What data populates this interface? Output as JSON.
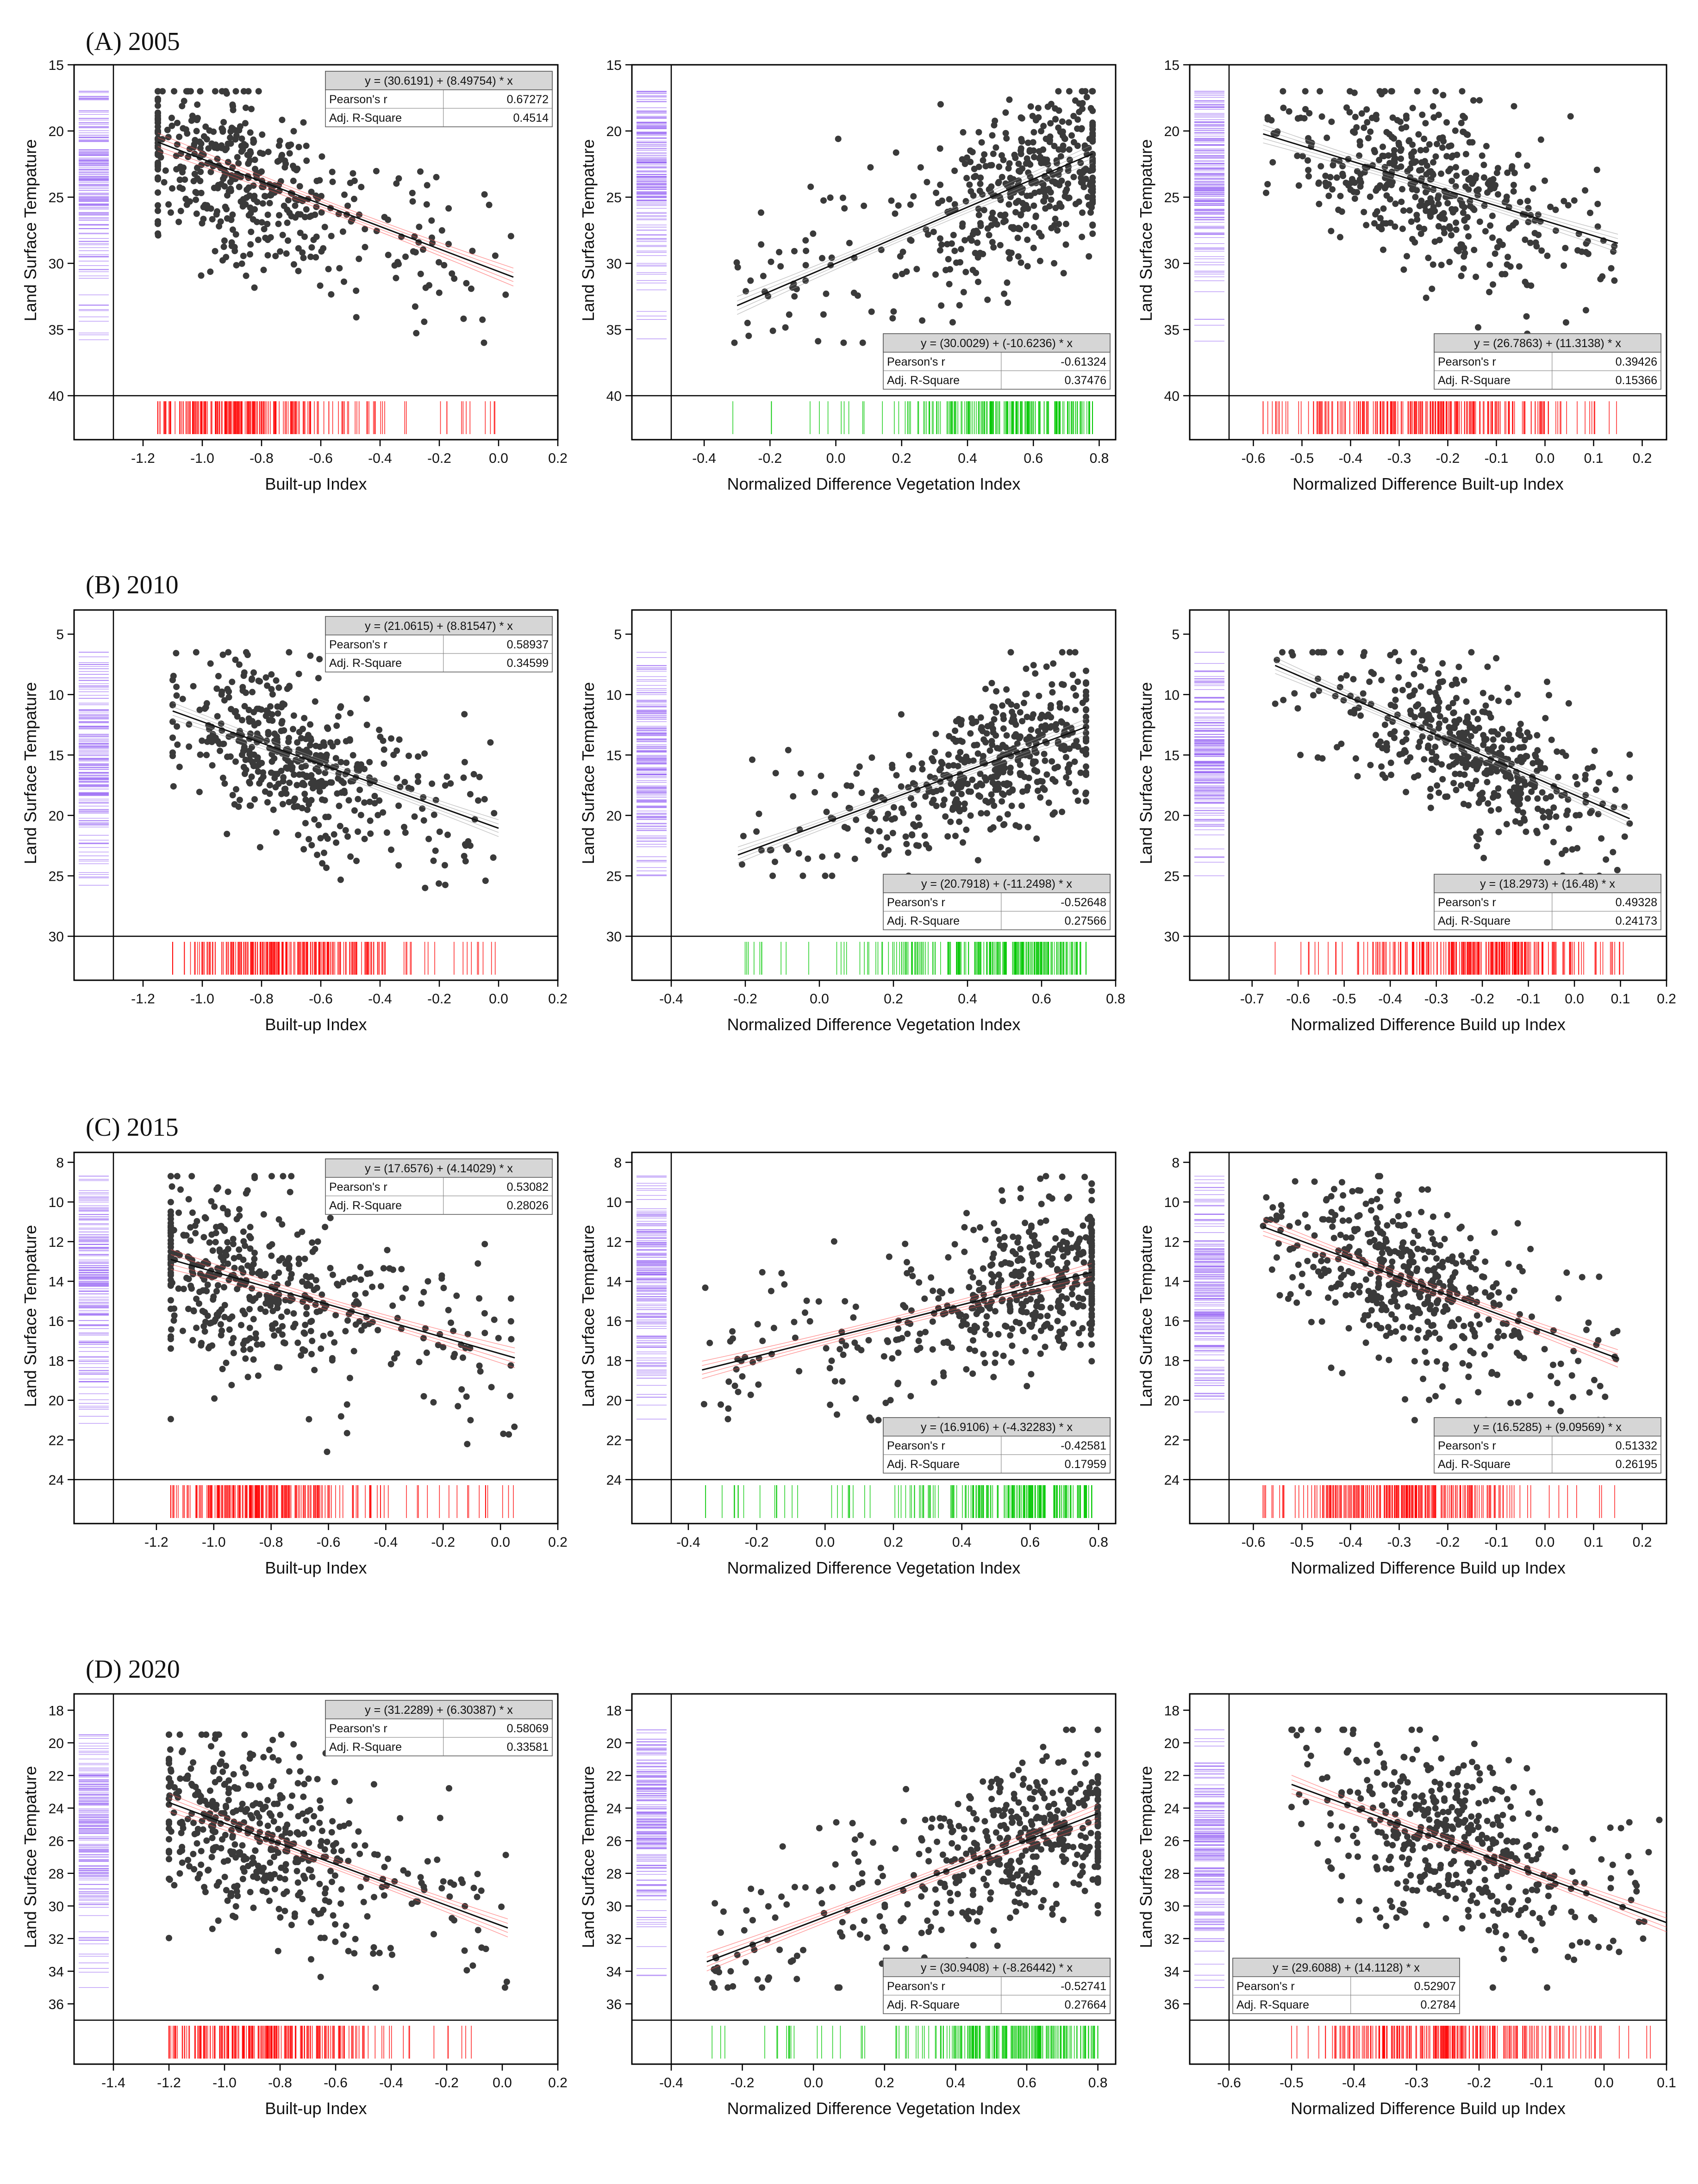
{
  "figure": {
    "panels_rows": [
      {
        "label": "(A) 2005"
      },
      {
        "label": "(B) 2010"
      },
      {
        "label": "(C) 2015"
      },
      {
        "label": "(D) 2020"
      }
    ]
  },
  "colors": {
    "points": "#3a3a3a",
    "y_rug": "#9b6cf5",
    "rug_red": "#ff0000",
    "rug_green": "#00c800",
    "ci_red": "#ff4d4d",
    "ci_gray": "#9a9a9a",
    "stat_header": "#d6d6d6"
  },
  "stats_labels": {
    "r": "Pearson's r",
    "adj": "Adj. R-Square"
  },
  "chart_data": [
    {
      "type": "scatter",
      "row": 0,
      "col": 0,
      "xlabel": "Built-up Index",
      "ylabel": "Land Surface Tempature",
      "xlim": [
        -1.3,
        0.2
      ],
      "ylim": [
        15,
        40
      ],
      "y_inverted": true,
      "xticks": [
        -1.2,
        -1.0,
        -0.8,
        -0.6,
        -0.4,
        -0.2,
        0.0,
        0.2
      ],
      "yticks": [
        15,
        20,
        25,
        30,
        35,
        40
      ],
      "equation": "y = (30.6191) + (8.49754) * x",
      "pearson_r": "0.67272",
      "adj_r2": "0.4514",
      "fit": {
        "x": [
          -1.15,
          0.05
        ],
        "y": [
          20.84,
          31.04
        ]
      },
      "x_range": [
        -1.15,
        0.05
      ],
      "y_range": [
        17,
        36
      ],
      "x_mode": -0.9,
      "y_mode": 23,
      "rug_color": "red",
      "ci_color": "red",
      "legend_position": "top-right"
    },
    {
      "type": "scatter",
      "row": 0,
      "col": 1,
      "xlabel": "Normalized Difference Vegetation Index",
      "ylabel": "Land Surface Tempature",
      "xlim": [
        -0.5,
        0.85
      ],
      "ylim": [
        15,
        40
      ],
      "y_inverted": true,
      "xticks": [
        -0.4,
        -0.2,
        0.0,
        0.2,
        0.4,
        0.6,
        0.8
      ],
      "yticks": [
        15,
        20,
        25,
        30,
        35,
        40
      ],
      "equation": "y = (30.0029) + (-10.6236) * x",
      "pearson_r": "-0.61324",
      "adj_r2": "0.37476",
      "fit": {
        "x": [
          -0.3,
          0.78
        ],
        "y": [
          33.19,
          21.72
        ]
      },
      "x_range": [
        -0.32,
        0.78
      ],
      "y_range": [
        17,
        36
      ],
      "x_mode": 0.6,
      "y_mode": 23,
      "rug_color": "green",
      "ci_color": "gray",
      "legend_position": "bottom-right"
    },
    {
      "type": "scatter",
      "row": 0,
      "col": 2,
      "xlabel": "Normalized Difference Built-up Index",
      "ylabel": "Land Surface Tempature",
      "xlim": [
        -0.65,
        0.25
      ],
      "ylim": [
        15,
        40
      ],
      "y_inverted": true,
      "xticks": [
        -0.6,
        -0.5,
        -0.4,
        -0.3,
        -0.2,
        -0.1,
        0.0,
        0.1,
        0.2
      ],
      "yticks": [
        15,
        20,
        25,
        30,
        35,
        40
      ],
      "equation": "y = (26.7863) + (11.3138) * x",
      "pearson_r": "0.39426",
      "adj_r2": "0.15366",
      "fit": {
        "x": [
          -0.58,
          0.15
        ],
        "y": [
          20.22,
          28.48
        ]
      },
      "x_range": [
        -0.58,
        0.15
      ],
      "y_range": [
        17,
        36
      ],
      "x_mode": -0.25,
      "y_mode": 23,
      "rug_color": "red",
      "ci_color": "gray",
      "legend_position": "bottom-right"
    },
    {
      "type": "scatter",
      "row": 1,
      "col": 0,
      "xlabel": "Built-up Index",
      "ylabel": "Land Surface Tempature",
      "xlim": [
        -1.3,
        0.2
      ],
      "ylim": [
        3,
        30
      ],
      "y_inverted": true,
      "xticks": [
        -1.2,
        -1.0,
        -0.8,
        -0.6,
        -0.4,
        -0.2,
        0.0,
        0.2
      ],
      "yticks": [
        5,
        10,
        15,
        20,
        25,
        30
      ],
      "equation": "y = (21.0615) + (8.81547) * x",
      "pearson_r": "0.58937",
      "adj_r2": "0.34599",
      "fit": {
        "x": [
          -1.1,
          0.0
        ],
        "y": [
          11.36,
          21.06
        ]
      },
      "x_range": [
        -1.1,
        0.0
      ],
      "y_range": [
        6.5,
        26
      ],
      "x_mode": -0.7,
      "y_mode": 15,
      "rug_color": "red",
      "ci_color": "gray",
      "legend_position": "top-right"
    },
    {
      "type": "scatter",
      "row": 1,
      "col": 1,
      "xlabel": "Normalized Difference Vegetation Index",
      "ylabel": "Land Surface Tempature",
      "xlim": [
        -0.4,
        0.8
      ],
      "ylim": [
        3,
        30
      ],
      "y_inverted": true,
      "xticks": [
        -0.4,
        -0.2,
        0.0,
        0.2,
        0.4,
        0.6,
        0.8
      ],
      "yticks": [
        5,
        10,
        15,
        20,
        25,
        30
      ],
      "equation": "y = (20.7918) + (-11.2498) * x",
      "pearson_r": "-0.52648",
      "adj_r2": "0.27566",
      "fit": {
        "x": [
          -0.22,
          0.72
        ],
        "y": [
          23.27,
          12.69
        ]
      },
      "x_range": [
        -0.22,
        0.72
      ],
      "y_range": [
        6.5,
        25
      ],
      "x_mode": 0.5,
      "y_mode": 15,
      "rug_color": "green",
      "ci_color": "gray",
      "legend_position": "bottom-right"
    },
    {
      "type": "scatter",
      "row": 1,
      "col": 2,
      "xlabel": "Normalized Difference Build up Index",
      "ylabel": "Land Surface Tempature",
      "xlim": [
        -0.75,
        0.2
      ],
      "ylim": [
        3,
        30
      ],
      "y_inverted": true,
      "xticks": [
        -0.7,
        -0.6,
        -0.5,
        -0.4,
        -0.3,
        -0.2,
        -0.1,
        0.0,
        0.1,
        0.2
      ],
      "yticks": [
        5,
        10,
        15,
        20,
        25,
        30
      ],
      "equation": "y = (18.2973) + (16.48) * x",
      "pearson_r": "0.49328",
      "adj_r2": "0.24173",
      "fit": {
        "x": [
          -0.65,
          0.12
        ],
        "y": [
          7.59,
          20.27
        ]
      },
      "x_range": [
        -0.65,
        0.12
      ],
      "y_range": [
        6.5,
        25
      ],
      "x_mode": -0.2,
      "y_mode": 15,
      "rug_color": "red",
      "ci_color": "gray",
      "legend_position": "bottom-right"
    },
    {
      "type": "scatter",
      "row": 2,
      "col": 0,
      "xlabel": "Built-up Index",
      "ylabel": "Land Surface Tempature",
      "xlim": [
        -1.35,
        0.2
      ],
      "ylim": [
        7.5,
        24
      ],
      "y_inverted": true,
      "xticks": [
        -1.2,
        -1.0,
        -0.8,
        -0.6,
        -0.4,
        -0.2,
        0.0,
        0.2
      ],
      "yticks": [
        8,
        10,
        12,
        14,
        16,
        18,
        20,
        22,
        24
      ],
      "equation": "y = (17.6576) + (4.14029) * x",
      "pearson_r": "0.53082",
      "adj_r2": "0.28026",
      "fit": {
        "x": [
          -1.15,
          0.05
        ],
        "y": [
          12.9,
          17.86
        ]
      },
      "x_range": [
        -1.15,
        0.05
      ],
      "y_range": [
        8.7,
        22.6
      ],
      "x_mode": -0.9,
      "y_mode": 14,
      "rug_color": "red",
      "ci_color": "red",
      "legend_position": "top-right"
    },
    {
      "type": "scatter",
      "row": 2,
      "col": 1,
      "xlabel": "Normalized Difference Vegetation Index",
      "ylabel": "Land Surface Tempature",
      "xlim": [
        -0.45,
        0.85
      ],
      "ylim": [
        7.5,
        24
      ],
      "y_inverted": true,
      "xticks": [
        -0.4,
        -0.2,
        0.0,
        0.2,
        0.4,
        0.6,
        0.8
      ],
      "yticks": [
        8,
        10,
        12,
        14,
        16,
        18,
        20,
        22,
        24
      ],
      "equation": "y = (16.9106) + (-4.32283) * x",
      "pearson_r": "-0.42581",
      "adj_r2": "0.17959",
      "fit": {
        "x": [
          -0.36,
          0.78
        ],
        "y": [
          18.47,
          13.54
        ]
      },
      "x_range": [
        -0.36,
        0.78
      ],
      "y_range": [
        8.7,
        21
      ],
      "x_mode": 0.6,
      "y_mode": 14,
      "rug_color": "green",
      "ci_color": "red",
      "legend_position": "bottom-right"
    },
    {
      "type": "scatter",
      "row": 2,
      "col": 2,
      "xlabel": "Normalized Difference Build up Index",
      "ylabel": "Land Surface Tempature",
      "xlim": [
        -0.65,
        0.25
      ],
      "ylim": [
        7.5,
        24
      ],
      "y_inverted": true,
      "xticks": [
        -0.6,
        -0.5,
        -0.4,
        -0.3,
        -0.2,
        -0.1,
        0.0,
        0.1,
        0.2
      ],
      "yticks": [
        8,
        10,
        12,
        14,
        16,
        18,
        20,
        22,
        24
      ],
      "equation": "y = (16.5285) + (9.09569) * x",
      "pearson_r": "0.51332",
      "adj_r2": "0.26195",
      "fit": {
        "x": [
          -0.58,
          0.15
        ],
        "y": [
          11.25,
          17.89
        ]
      },
      "x_range": [
        -0.58,
        0.15
      ],
      "y_range": [
        8.7,
        21
      ],
      "x_mode": -0.28,
      "y_mode": 14.5,
      "rug_color": "red",
      "ci_color": "red",
      "legend_position": "bottom-right"
    },
    {
      "type": "scatter",
      "row": 3,
      "col": 0,
      "xlabel": "Built-up Index",
      "ylabel": "Land Surface Tempature",
      "xlim": [
        -1.4,
        0.2
      ],
      "ylim": [
        17,
        37
      ],
      "y_inverted": true,
      "xticks": [
        -1.4,
        -1.2,
        -1.0,
        -0.8,
        -0.6,
        -0.4,
        -0.2,
        0.0,
        0.2
      ],
      "yticks": [
        18,
        20,
        22,
        24,
        26,
        28,
        30,
        32,
        34,
        36
      ],
      "equation": "y = (31.2289) + (6.30387) * x",
      "pearson_r": "0.58069",
      "adj_r2": "0.33581",
      "fit": {
        "x": [
          -1.2,
          0.02
        ],
        "y": [
          23.66,
          31.35
        ]
      },
      "x_range": [
        -1.2,
        0.02
      ],
      "y_range": [
        19.5,
        35
      ],
      "x_mode": -0.9,
      "y_mode": 25,
      "rug_color": "red",
      "ci_color": "red",
      "legend_position": "top-right"
    },
    {
      "type": "scatter",
      "row": 3,
      "col": 1,
      "xlabel": "Normalized Difference Vegetation Index",
      "ylabel": "Land Surface Tempature",
      "xlim": [
        -0.4,
        0.85
      ],
      "ylim": [
        17,
        37
      ],
      "y_inverted": true,
      "xticks": [
        -0.4,
        -0.2,
        0.0,
        0.2,
        0.4,
        0.6,
        0.8
      ],
      "yticks": [
        18,
        20,
        22,
        24,
        26,
        28,
        30,
        32,
        34,
        36
      ],
      "equation": "y = (30.9408) + (-8.26442) * x",
      "pearson_r": "-0.52741",
      "adj_r2": "0.27664",
      "fit": {
        "x": [
          -0.3,
          0.8
        ],
        "y": [
          33.42,
          24.33
        ]
      },
      "x_range": [
        -0.3,
        0.8
      ],
      "y_range": [
        19.2,
        35
      ],
      "x_mode": 0.62,
      "y_mode": 25,
      "rug_color": "green",
      "ci_color": "red",
      "legend_position": "bottom-right"
    },
    {
      "type": "scatter",
      "row": 3,
      "col": 2,
      "xlabel": "Normalized Difference Build up Index",
      "ylabel": "Land Surface Tempature",
      "xlim": [
        -0.6,
        0.1
      ],
      "ylim": [
        17,
        37
      ],
      "y_inverted": true,
      "xticks": [
        -0.6,
        -0.5,
        -0.4,
        -0.3,
        -0.2,
        -0.1,
        0.0,
        0.1
      ],
      "yticks": [
        18,
        20,
        22,
        24,
        26,
        28,
        30,
        32,
        34,
        36
      ],
      "equation": "y = (29.6088) + (14.1128) * x",
      "pearson_r": "0.52907",
      "adj_r2": "0.2784",
      "fit": {
        "x": [
          -0.5,
          0.1
        ],
        "y": [
          22.55,
          31.02
        ]
      },
      "x_range": [
        -0.5,
        0.1
      ],
      "y_range": [
        19.2,
        35
      ],
      "x_mode": -0.25,
      "y_mode": 26,
      "rug_color": "red",
      "ci_color": "red",
      "legend_position": "bottom-left"
    }
  ]
}
